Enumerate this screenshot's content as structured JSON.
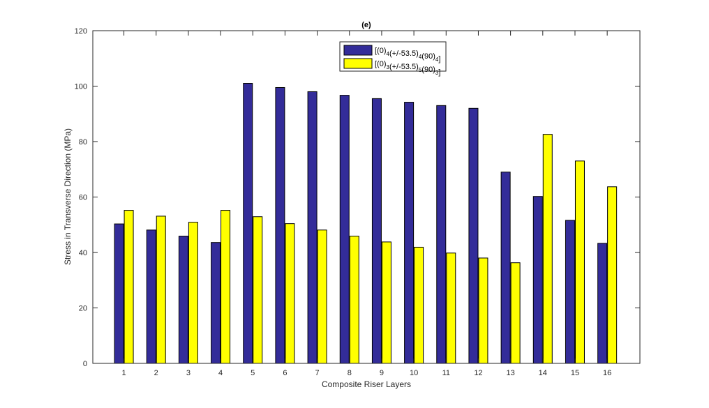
{
  "chart_data": {
    "type": "bar",
    "title": "(e)",
    "xlabel": "Composite Riser Layers",
    "ylabel": "Stress in Transverse Direction (MPa)",
    "ylim": [
      0,
      120
    ],
    "yticks": [
      0,
      20,
      40,
      60,
      80,
      100,
      120
    ],
    "categories": [
      "1",
      "2",
      "3",
      "4",
      "5",
      "6",
      "7",
      "8",
      "9",
      "10",
      "11",
      "12",
      "13",
      "14",
      "15",
      "16"
    ],
    "legend_placement": "top-center",
    "series": [
      {
        "name_parts": [
          [
            "[(0)",
            ""
          ],
          [
            "4",
            "sub"
          ],
          [
            "(+/-53.5)",
            ""
          ],
          [
            "4",
            "sub"
          ],
          [
            "(90)",
            ""
          ],
          [
            "4",
            "sub"
          ],
          [
            "]",
            ""
          ]
        ],
        "color": "#332c99",
        "values": [
          50.3,
          48.1,
          45.9,
          43.6,
          101.0,
          99.5,
          98.0,
          96.7,
          95.5,
          94.2,
          93.0,
          92.0,
          69.0,
          60.2,
          51.6,
          43.3
        ]
      },
      {
        "name_parts": [
          [
            "[(0)",
            ""
          ],
          [
            "3",
            "sub"
          ],
          [
            "(+/-53.5)",
            ""
          ],
          [
            "5",
            "sub"
          ],
          [
            "(90)",
            ""
          ],
          [
            "3",
            "sub"
          ],
          [
            "]",
            ""
          ]
        ],
        "color": "#ffff00",
        "values": [
          55.2,
          53.1,
          50.9,
          55.2,
          52.9,
          50.4,
          48.1,
          45.9,
          43.8,
          41.9,
          39.8,
          38.0,
          36.3,
          82.6,
          73.0,
          63.7
        ]
      }
    ],
    "grid": false
  }
}
